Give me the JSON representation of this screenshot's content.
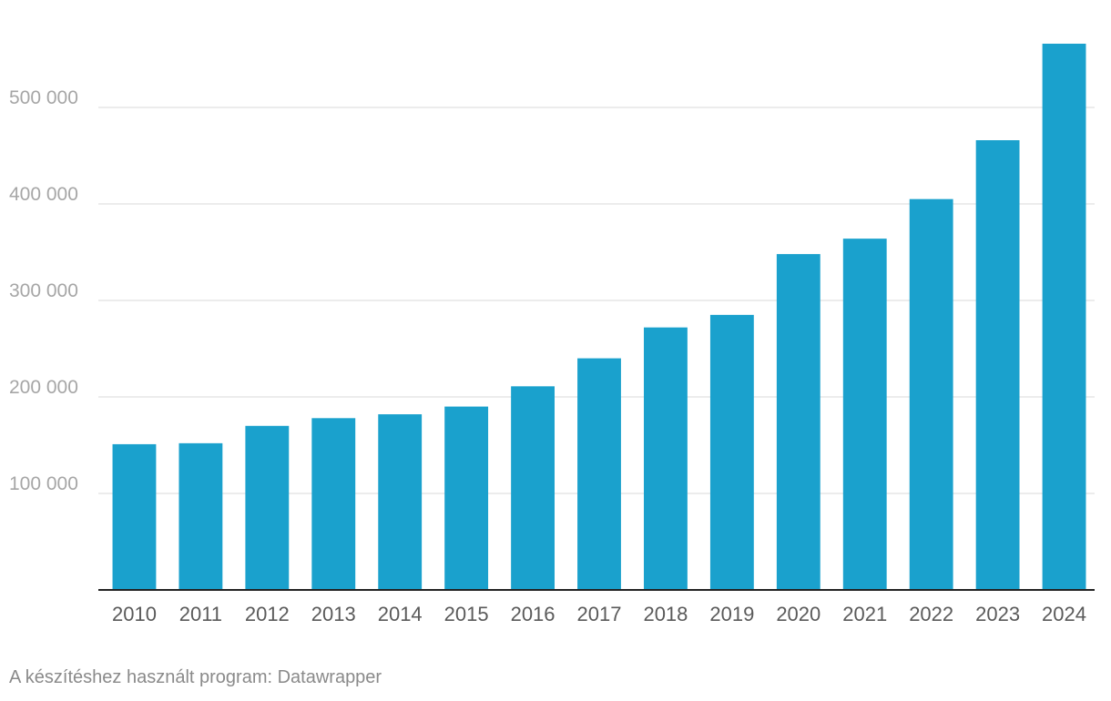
{
  "chart_data": {
    "type": "bar",
    "categories": [
      "2010",
      "2011",
      "2012",
      "2013",
      "2014",
      "2015",
      "2016",
      "2017",
      "2018",
      "2019",
      "2020",
      "2021",
      "2022",
      "2023",
      "2024"
    ],
    "values": [
      151000,
      152000,
      170000,
      178000,
      182000,
      190000,
      211000,
      240000,
      272000,
      285000,
      348000,
      364000,
      405000,
      466000,
      566000
    ],
    "title": "",
    "xlabel": "",
    "ylabel": "",
    "ylim": [
      0,
      566000
    ],
    "yticks": [
      100000,
      200000,
      300000,
      400000,
      500000
    ],
    "ytick_labels": [
      "100 000",
      "200 000",
      "300 000",
      "400 000",
      "500 000"
    ],
    "grid": true,
    "bar_color": "#1aa1cd"
  },
  "footer": {
    "credit": "A készítéshez használt program: Datawrapper"
  }
}
